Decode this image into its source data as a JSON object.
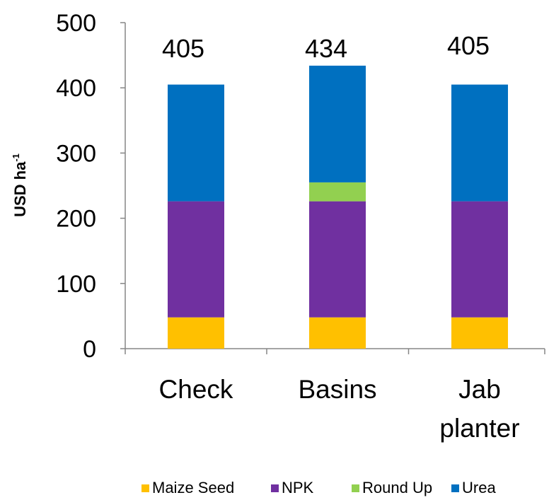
{
  "chart_data": {
    "type": "bar",
    "stacked": true,
    "categories": [
      [
        "Check"
      ],
      [
        "Basins"
      ],
      [
        "Jab",
        "planter"
      ]
    ],
    "series": [
      {
        "name": "Maize Seed",
        "color": "#FFC000",
        "values": [
          48,
          48,
          48
        ]
      },
      {
        "name": "NPK",
        "color": "#7030A0",
        "values": [
          178,
          178,
          178
        ]
      },
      {
        "name": "Round Up",
        "color": "#92D050",
        "values": [
          0,
          29,
          0
        ]
      },
      {
        "name": "Urea",
        "color": "#0070C0",
        "values": [
          179,
          179,
          179
        ]
      }
    ],
    "totals": [
      "405",
      "434",
      "405"
    ],
    "ylabel": {
      "text": "USD ha",
      "sup": "-1"
    },
    "ylim": [
      0,
      500
    ],
    "yticks": [
      "0",
      "100",
      "200",
      "300",
      "400",
      "500"
    ],
    "grid": false,
    "legend_position": "bottom"
  }
}
